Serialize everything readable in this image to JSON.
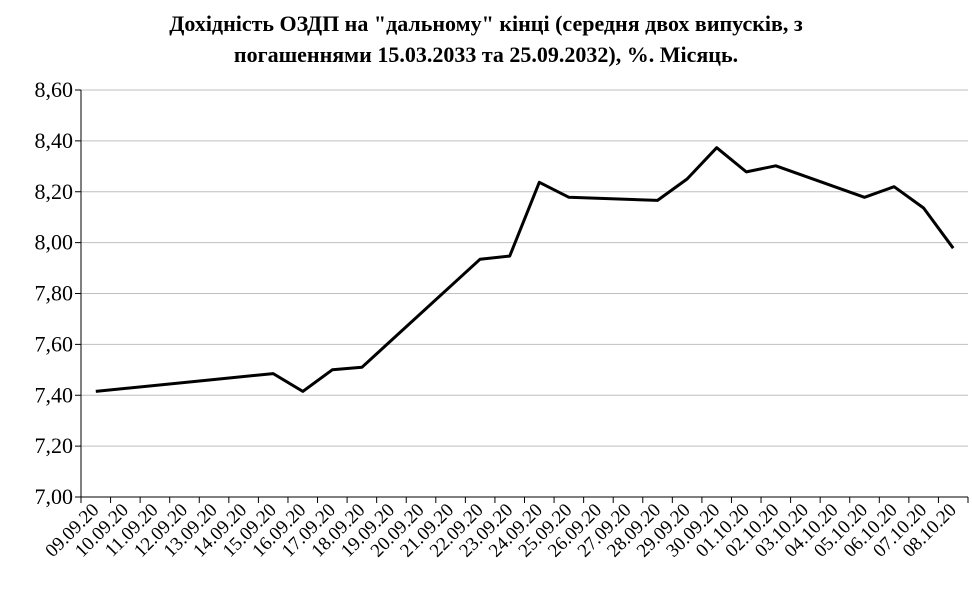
{
  "chart_data": {
    "type": "line",
    "title_line1": "Дохідність ОЗДП на \"дальному\" кінці (середня двох випусків, з",
    "title_line2": "погашеннями 15.03.2033 та 25.09.2032), %. Місяць.",
    "xlabel": "",
    "ylabel": "",
    "ylim": [
      7.0,
      8.6
    ],
    "ytick_labels": [
      "7,00",
      "7,20",
      "7,40",
      "7,60",
      "7,80",
      "8,00",
      "8,20",
      "8,40",
      "8,60"
    ],
    "categories": [
      "09.09.20",
      "10.09.20",
      "11.09.20",
      "12.09.20",
      "13.09.20",
      "14.09.20",
      "15.09.20",
      "16.09.20",
      "17.09.20",
      "18.09.20",
      "19.09.20",
      "20.09.20",
      "21.09.20",
      "22.09.20",
      "23.09.20",
      "24.09.20",
      "25.09.20",
      "26.09.20",
      "27.09.20",
      "28.09.20",
      "29.09.20",
      "30.09.20",
      "01.10.20",
      "02.10.20",
      "03.10.20",
      "04.10.20",
      "05.10.20",
      "06.10.20",
      "07.10.20",
      "08.10.20"
    ],
    "values": [
      7.415,
      null,
      null,
      null,
      null,
      null,
      7.485,
      7.415,
      7.5,
      7.51,
      null,
      null,
      null,
      7.935,
      7.947,
      8.237,
      8.178,
      null,
      null,
      8.166,
      8.25,
      8.373,
      8.278,
      8.302,
      null,
      null,
      8.178,
      8.22,
      8.136,
      7.978
    ],
    "grid": "horizontal",
    "legend": "none",
    "line_color": "#000000",
    "grid_color": "#bfbfbf"
  }
}
